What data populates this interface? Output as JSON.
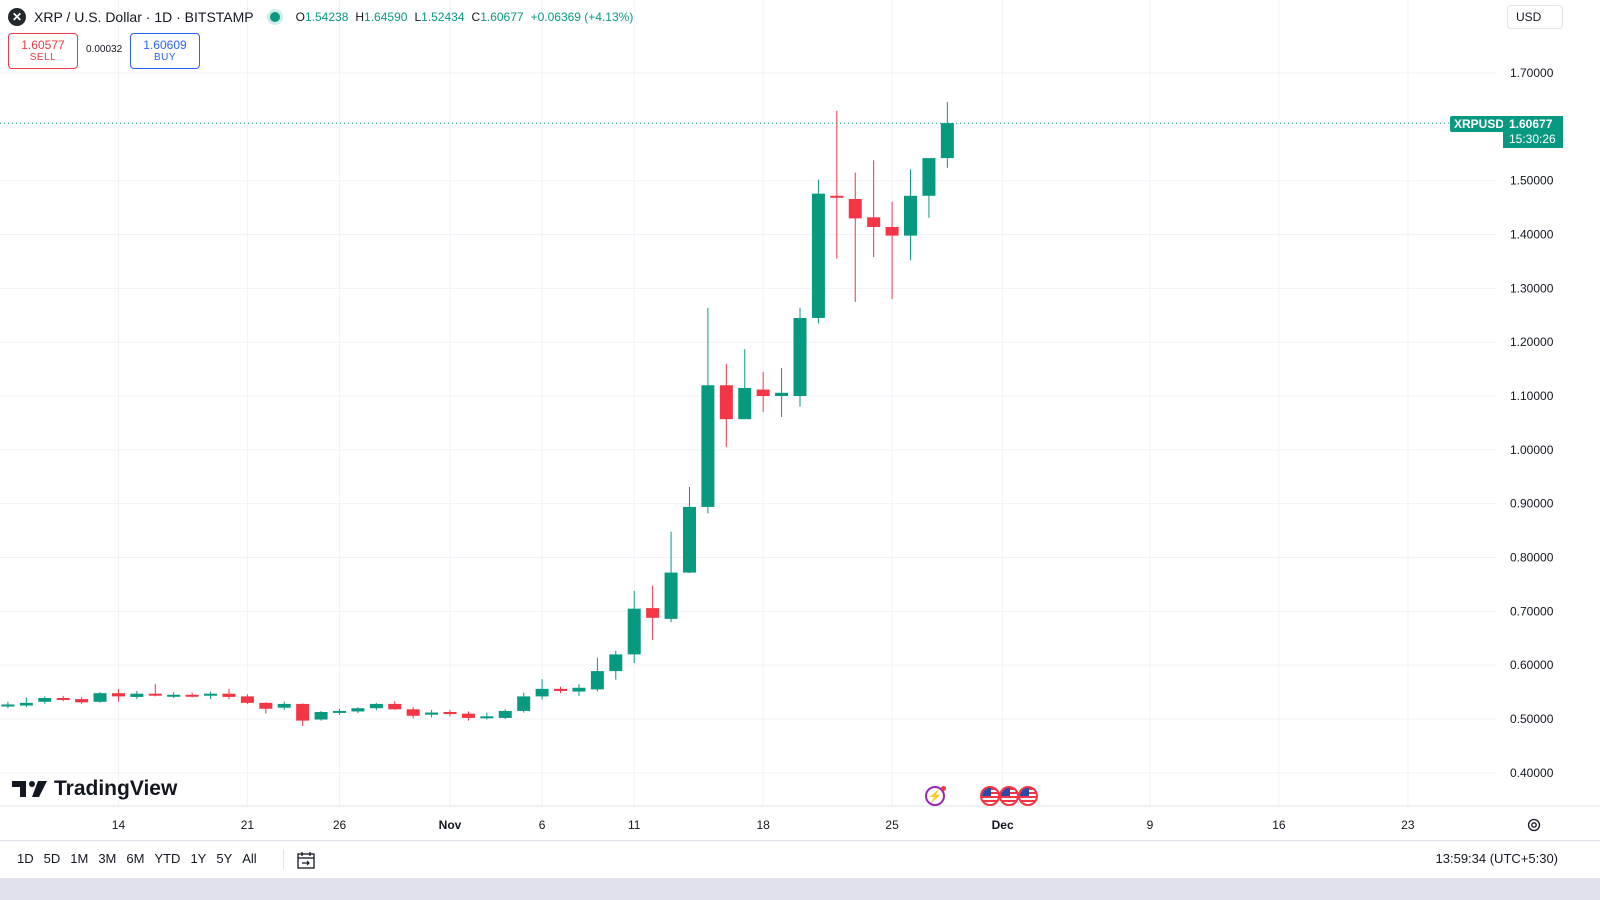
{
  "header": {
    "title": "XRP / U.S. Dollar · 1D · BITSTAMP",
    "open_label": "O",
    "open": "1.54238",
    "high_label": "H",
    "high": "1.64590",
    "low_label": "L",
    "low": "1.52434",
    "close_label": "C",
    "close": "1.60677",
    "change": "+0.06369 (+4.13%)"
  },
  "trade": {
    "sell_price": "1.60577",
    "sell_label": "SELL",
    "spread": "0.00032",
    "buy_price": "1.60609",
    "buy_label": "BUY"
  },
  "currency": "USD",
  "last_price": {
    "symbol": "XRPUSD",
    "price": "1.60677",
    "countdown": "15:30:26"
  },
  "logo_text": "TradingView",
  "toolbar": {
    "ranges": [
      "1D",
      "5D",
      "1M",
      "3M",
      "6M",
      "YTD",
      "1Y",
      "5Y",
      "All"
    ],
    "clock": "13:59:34 (UTC+5:30)"
  },
  "colors": {
    "up": "#089981",
    "down": "#f23645",
    "grid": "#f0f3fa",
    "text": "#131722"
  },
  "chart_data": {
    "type": "candlestick",
    "y_ticks": [
      "0.40000",
      "0.50000",
      "0.60000",
      "0.70000",
      "0.80000",
      "0.90000",
      "1.00000",
      "1.10000",
      "1.20000",
      "1.30000",
      "1.40000",
      "1.50000",
      "1.60000",
      "1.70000"
    ],
    "ylim": [
      0.33,
      1.8
    ],
    "x_ticks": [
      {
        "label": "14",
        "day": 13
      },
      {
        "label": "21",
        "day": 20
      },
      {
        "label": "26",
        "day": 25
      },
      {
        "label": "Nov",
        "day": 31
      },
      {
        "label": "6",
        "day": 36
      },
      {
        "label": "11",
        "day": 41
      },
      {
        "label": "18",
        "day": 48
      },
      {
        "label": "25",
        "day": 55
      },
      {
        "label": "Dec",
        "day": 61
      },
      {
        "label": "9",
        "day": 69
      },
      {
        "label": "16",
        "day": 76
      },
      {
        "label": "23",
        "day": 83
      }
    ],
    "candles": [
      {
        "day": 7,
        "o": 0.526,
        "h": 0.532,
        "l": 0.52,
        "c": 0.527
      },
      {
        "day": 8,
        "o": 0.525,
        "h": 0.54,
        "l": 0.522,
        "c": 0.53
      },
      {
        "day": 9,
        "o": 0.532,
        "h": 0.542,
        "l": 0.528,
        "c": 0.539
      },
      {
        "day": 10,
        "o": 0.539,
        "h": 0.543,
        "l": 0.533,
        "c": 0.537
      },
      {
        "day": 11,
        "o": 0.537,
        "h": 0.541,
        "l": 0.528,
        "c": 0.531
      },
      {
        "day": 12,
        "o": 0.532,
        "h": 0.55,
        "l": 0.53,
        "c": 0.548
      },
      {
        "day": 13,
        "o": 0.548,
        "h": 0.556,
        "l": 0.532,
        "c": 0.542
      },
      {
        "day": 14,
        "o": 0.541,
        "h": 0.552,
        "l": 0.537,
        "c": 0.547
      },
      {
        "day": 15,
        "o": 0.547,
        "h": 0.565,
        "l": 0.542,
        "c": 0.544
      },
      {
        "day": 16,
        "o": 0.543,
        "h": 0.55,
        "l": 0.539,
        "c": 0.545
      },
      {
        "day": 17,
        "o": 0.545,
        "h": 0.549,
        "l": 0.54,
        "c": 0.543
      },
      {
        "day": 18,
        "o": 0.544,
        "h": 0.551,
        "l": 0.537,
        "c": 0.547
      },
      {
        "day": 19,
        "o": 0.547,
        "h": 0.556,
        "l": 0.537,
        "c": 0.541
      },
      {
        "day": 20,
        "o": 0.542,
        "h": 0.546,
        "l": 0.528,
        "c": 0.53
      },
      {
        "day": 21,
        "o": 0.53,
        "h": 0.531,
        "l": 0.51,
        "c": 0.519
      },
      {
        "day": 22,
        "o": 0.521,
        "h": 0.532,
        "l": 0.517,
        "c": 0.528
      },
      {
        "day": 23,
        "o": 0.528,
        "h": 0.529,
        "l": 0.487,
        "c": 0.497
      },
      {
        "day": 24,
        "o": 0.499,
        "h": 0.515,
        "l": 0.497,
        "c": 0.513
      },
      {
        "day": 25,
        "o": 0.512,
        "h": 0.519,
        "l": 0.508,
        "c": 0.515
      },
      {
        "day": 26,
        "o": 0.514,
        "h": 0.522,
        "l": 0.511,
        "c": 0.52
      },
      {
        "day": 27,
        "o": 0.52,
        "h": 0.53,
        "l": 0.516,
        "c": 0.528
      },
      {
        "day": 28,
        "o": 0.528,
        "h": 0.533,
        "l": 0.517,
        "c": 0.518
      },
      {
        "day": 29,
        "o": 0.518,
        "h": 0.522,
        "l": 0.501,
        "c": 0.506
      },
      {
        "day": 30,
        "o": 0.508,
        "h": 0.517,
        "l": 0.503,
        "c": 0.512
      },
      {
        "day": 31,
        "o": 0.513,
        "h": 0.517,
        "l": 0.505,
        "c": 0.51
      },
      {
        "day": 32,
        "o": 0.51,
        "h": 0.514,
        "l": 0.497,
        "c": 0.502
      },
      {
        "day": 33,
        "o": 0.502,
        "h": 0.512,
        "l": 0.499,
        "c": 0.505
      },
      {
        "day": 34,
        "o": 0.502,
        "h": 0.518,
        "l": 0.5,
        "c": 0.515
      },
      {
        "day": 35,
        "o": 0.515,
        "h": 0.549,
        "l": 0.512,
        "c": 0.542
      },
      {
        "day": 36,
        "o": 0.542,
        "h": 0.574,
        "l": 0.536,
        "c": 0.556
      },
      {
        "day": 37,
        "o": 0.556,
        "h": 0.56,
        "l": 0.548,
        "c": 0.552
      },
      {
        "day": 38,
        "o": 0.551,
        "h": 0.565,
        "l": 0.543,
        "c": 0.558
      },
      {
        "day": 39,
        "o": 0.555,
        "h": 0.614,
        "l": 0.551,
        "c": 0.589
      },
      {
        "day": 40,
        "o": 0.589,
        "h": 0.627,
        "l": 0.573,
        "c": 0.62
      },
      {
        "day": 41,
        "o": 0.62,
        "h": 0.738,
        "l": 0.604,
        "c": 0.705
      },
      {
        "day": 42,
        "o": 0.706,
        "h": 0.748,
        "l": 0.647,
        "c": 0.688
      },
      {
        "day": 43,
        "o": 0.686,
        "h": 0.848,
        "l": 0.68,
        "c": 0.772
      },
      {
        "day": 44,
        "o": 0.772,
        "h": 0.931,
        "l": 0.771,
        "c": 0.894
      },
      {
        "day": 45,
        "o": 0.894,
        "h": 1.264,
        "l": 0.882,
        "c": 1.12
      },
      {
        "day": 46,
        "o": 1.12,
        "h": 1.16,
        "l": 1.005,
        "c": 1.057
      },
      {
        "day": 47,
        "o": 1.057,
        "h": 1.187,
        "l": 1.057,
        "c": 1.115
      },
      {
        "day": 48,
        "o": 1.112,
        "h": 1.145,
        "l": 1.07,
        "c": 1.1
      },
      {
        "day": 49,
        "o": 1.1,
        "h": 1.152,
        "l": 1.061,
        "c": 1.106
      },
      {
        "day": 50,
        "o": 1.1,
        "h": 1.264,
        "l": 1.08,
        "c": 1.245
      },
      {
        "day": 51,
        "o": 1.245,
        "h": 1.502,
        "l": 1.235,
        "c": 1.476
      },
      {
        "day": 52,
        "o": 1.472,
        "h": 1.63,
        "l": 1.355,
        "c": 1.47
      },
      {
        "day": 53,
        "o": 1.466,
        "h": 1.515,
        "l": 1.275,
        "c": 1.43
      },
      {
        "day": 54,
        "o": 1.432,
        "h": 1.538,
        "l": 1.358,
        "c": 1.414
      },
      {
        "day": 55,
        "o": 1.414,
        "h": 1.461,
        "l": 1.28,
        "c": 1.398
      },
      {
        "day": 56,
        "o": 1.398,
        "h": 1.521,
        "l": 1.352,
        "c": 1.472
      },
      {
        "day": 57,
        "o": 1.472,
        "h": 1.541,
        "l": 1.431,
        "c": 1.542
      },
      {
        "day": 58,
        "o": 1.542,
        "h": 1.646,
        "l": 1.524,
        "c": 1.607
      }
    ]
  }
}
